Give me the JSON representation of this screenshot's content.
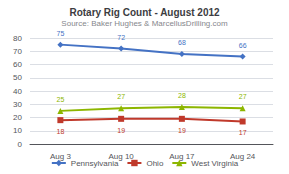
{
  "chart_data": {
    "type": "line",
    "title": "Rotary Rig Count - August 2012",
    "subtitle": "Source: Baker Hughes & MarcellusDrilling.com",
    "categories": [
      "Aug 3",
      "Aug 10",
      "Aug 17",
      "Aug 24"
    ],
    "series": [
      {
        "name": "Pennsylvania",
        "color": "#4472C4",
        "marker": "diamond",
        "values": [
          75,
          72,
          68,
          66
        ]
      },
      {
        "name": "Ohio",
        "color": "#C0392B",
        "marker": "square",
        "values": [
          18,
          19,
          19,
          17
        ]
      },
      {
        "name": "West Virginia",
        "color": "#8DB600",
        "marker": "triangle",
        "values": [
          25,
          27,
          28,
          27
        ]
      }
    ],
    "ylim": [
      0,
      80
    ],
    "yticks": [
      0,
      10,
      20,
      30,
      40,
      50,
      60,
      70,
      80
    ],
    "grid": true,
    "legend": "bottom",
    "data_labels": true
  }
}
